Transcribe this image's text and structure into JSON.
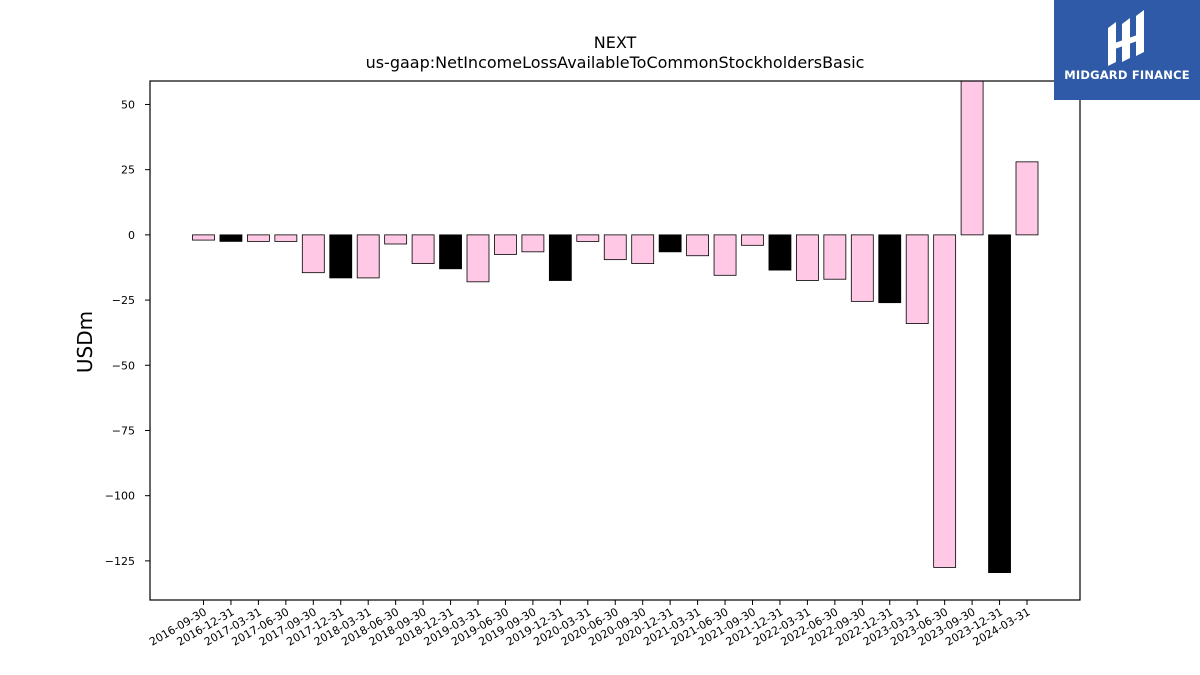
{
  "chart_data": {
    "type": "bar",
    "title": "NEXT",
    "subtitle": "us-gaap:NetIncomeLossAvailableToCommonStockholdersBasic",
    "xlabel": "",
    "ylabel": "USDm",
    "ylim": [
      -140,
      59
    ],
    "yticks": [
      50,
      25,
      0,
      -25,
      -50,
      -75,
      -100,
      -125
    ],
    "ytick_labels": [
      "50",
      "25",
      "0",
      "−25",
      "−50",
      "−75",
      "−100",
      "−125"
    ],
    "categories": [
      "2016-09-30",
      "2016-12-31",
      "2017-03-31",
      "2017-06-30",
      "2017-09-30",
      "2017-12-31",
      "2018-03-31",
      "2018-06-30",
      "2018-09-30",
      "2018-12-31",
      "2019-03-31",
      "2019-06-30",
      "2019-09-30",
      "2019-12-31",
      "2020-03-31",
      "2020-06-30",
      "2020-09-30",
      "2020-12-31",
      "2021-03-31",
      "2021-06-30",
      "2021-09-30",
      "2021-12-31",
      "2022-03-31",
      "2022-06-30",
      "2022-09-30",
      "2022-12-31",
      "2023-03-31",
      "2023-06-30",
      "2023-09-30",
      "2023-12-31",
      "2024-03-31"
    ],
    "values": [
      -2,
      -2.5,
      -2.5,
      -2.5,
      -14.5,
      -16.5,
      -16.5,
      -3.5,
      -11,
      -13,
      -18,
      -7.5,
      -6.5,
      -17.5,
      -2.5,
      -9.5,
      -11,
      -6.5,
      -8,
      -15.5,
      -4,
      -13.5,
      -17.5,
      -17,
      -25.5,
      -26,
      -34,
      -127.5,
      59,
      -129.5,
      28
    ],
    "bar_colors": [
      "#ffc9e6",
      "#000000",
      "#ffc9e6",
      "#ffc9e6",
      "#ffc9e6",
      "#000000",
      "#ffc9e6",
      "#ffc9e6",
      "#ffc9e6",
      "#000000",
      "#ffc9e6",
      "#ffc9e6",
      "#ffc9e6",
      "#000000",
      "#ffc9e6",
      "#ffc9e6",
      "#ffc9e6",
      "#000000",
      "#ffc9e6",
      "#ffc9e6",
      "#ffc9e6",
      "#000000",
      "#ffc9e6",
      "#ffc9e6",
      "#ffc9e6",
      "#000000",
      "#ffc9e6",
      "#ffc9e6",
      "#ffc9e6",
      "#000000",
      "#ffc9e6"
    ],
    "grid": false,
    "legend": "none"
  },
  "logo": {
    "name": "MIDGARD FINANCE",
    "background": "#2f5aa8",
    "text_color": "#ffffff"
  }
}
